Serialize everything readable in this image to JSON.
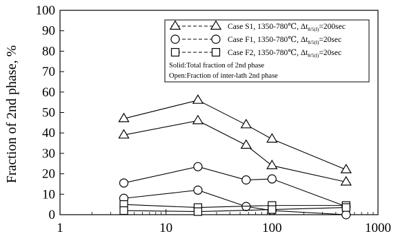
{
  "chart_data": {
    "type": "line",
    "x_scale": "log",
    "xlim": [
      1,
      1000
    ],
    "ylim": [
      0,
      100
    ],
    "ylabel": "Fraction of 2nd phase, %",
    "xlabel": "",
    "x_ticks": [
      "1",
      "10",
      "100",
      "1000"
    ],
    "y_ticks": [
      "0",
      "10",
      "20",
      "30",
      "40",
      "50",
      "60",
      "70",
      "80",
      "90",
      "100"
    ],
    "grid": false,
    "legend_position": "top-right",
    "legend": [
      {
        "label": "Case S1, 1350-780℃, Δt",
        "sub": "8/5(I)",
        "tail": "=200sec",
        "marker": "triangle"
      },
      {
        "label": "Case F1, 1350-780℃, Δt",
        "sub": "8/5(I)",
        "tail": "=20sec",
        "marker": "circle"
      },
      {
        "label": "Case F2, 1350-780℃, Δt",
        "sub": "8/5(I)",
        "tail": "=20sec",
        "marker": "square"
      }
    ],
    "notes": [
      "Solid:Total fraction of 2nd phase",
      "Open:Fraction of inter-lath 2nd phase"
    ],
    "series": [
      {
        "marker": "triangle",
        "line": "solid",
        "x": [
          4,
          20,
          57,
          100,
          500
        ],
        "values": [
          47,
          56,
          44,
          37,
          22
        ]
      },
      {
        "marker": "triangle",
        "line": "solid",
        "x": [
          4,
          20,
          57,
          100,
          500
        ],
        "values": [
          39,
          46,
          34,
          24,
          16
        ]
      },
      {
        "marker": "circle",
        "line": "solid",
        "x": [
          4,
          20,
          57,
          100,
          500
        ],
        "values": [
          15.5,
          23.5,
          17,
          17.5,
          4
        ]
      },
      {
        "marker": "circle",
        "line": "solid",
        "x": [
          4,
          20,
          57,
          100,
          500
        ],
        "values": [
          8,
          12,
          4,
          2,
          0
        ]
      },
      {
        "marker": "square",
        "line": "solid",
        "x": [
          4,
          20,
          100,
          500
        ],
        "values": [
          5,
          3.5,
          4.5,
          4.5
        ]
      },
      {
        "marker": "square",
        "line": "solid",
        "x": [
          4,
          20,
          100,
          500
        ],
        "values": [
          2,
          1.5,
          2.5,
          3.5
        ]
      }
    ]
  }
}
